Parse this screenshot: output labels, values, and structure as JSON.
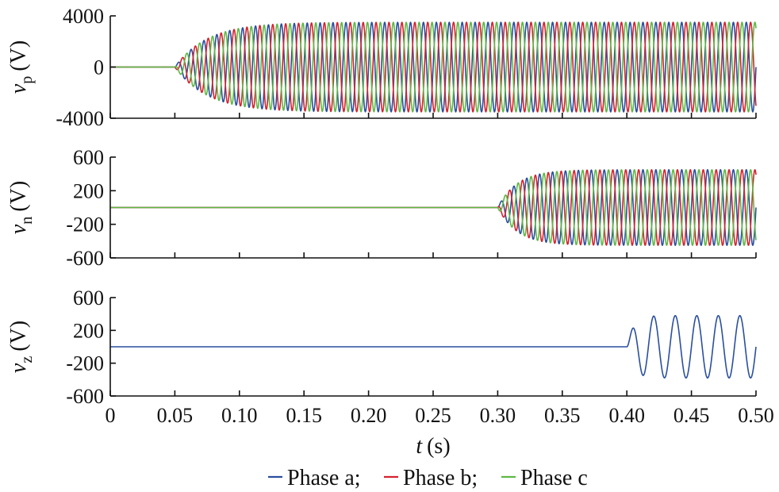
{
  "colors": {
    "phase_a": "#2b4f9e",
    "phase_b": "#d4232f",
    "phase_c": "#5fb844"
  },
  "chart_data": {
    "type": "line",
    "xlabel_var": "t",
    "xlabel_unit": "(s)",
    "x_range": [
      0,
      0.5
    ],
    "x_ticks": [
      0,
      0.05,
      0.1,
      0.15,
      0.2,
      0.25,
      0.3,
      0.35,
      0.4,
      0.45,
      0.5
    ],
    "x_tick_labels": [
      "0",
      "0.05",
      "0.10",
      "0.15",
      "0.20",
      "0.25",
      "0.30",
      "0.35",
      "0.40",
      "0.45",
      "0.50"
    ],
    "legend": {
      "placement": "bottom-center",
      "entries": [
        {
          "label": "Phase a;",
          "color": "#2b4f9e"
        },
        {
          "label": "Phase b;",
          "color": "#d4232f"
        },
        {
          "label": "Phase c",
          "color": "#5fb844"
        }
      ]
    },
    "panels": [
      {
        "id": "vp",
        "ylabel_var": "v",
        "ylabel_sub": "p",
        "ylabel_unit": "(V)",
        "ylim": [
          -4000,
          4000
        ],
        "yticks": [
          -4000,
          0,
          4000
        ],
        "ytick_labels": [
          "-4000",
          "0",
          "4000"
        ],
        "series": [
          {
            "name": "Phase a",
            "color": "#2b4f9e",
            "onset": 0.05,
            "amplitude": 3500,
            "tau": 0.025,
            "freq": 100,
            "phase_deg": 0,
            "visible": true
          },
          {
            "name": "Phase b",
            "color": "#d4232f",
            "onset": 0.05,
            "amplitude": 3500,
            "tau": 0.025,
            "freq": 100,
            "phase_deg": -120,
            "visible": true
          },
          {
            "name": "Phase c",
            "color": "#5fb844",
            "onset": 0.05,
            "amplitude": 3500,
            "tau": 0.025,
            "freq": 100,
            "phase_deg": 120,
            "visible": true
          }
        ]
      },
      {
        "id": "vn",
        "ylabel_var": "v",
        "ylabel_sub": "n",
        "ylabel_unit": "(V)",
        "ylim": [
          -600,
          600
        ],
        "yticks": [
          -600,
          -200,
          200,
          600
        ],
        "ytick_labels": [
          "-600",
          "-200",
          "200",
          "600"
        ],
        "series": [
          {
            "name": "Phase a",
            "color": "#2b4f9e",
            "onset": 0.3,
            "amplitude": 450,
            "tau": 0.015,
            "freq": 100,
            "phase_deg": 0,
            "visible": true
          },
          {
            "name": "Phase b",
            "color": "#d4232f",
            "onset": 0.3,
            "amplitude": 450,
            "tau": 0.015,
            "freq": 100,
            "phase_deg": 120,
            "visible": true
          },
          {
            "name": "Phase c",
            "color": "#5fb844",
            "onset": 0.3,
            "amplitude": 450,
            "tau": 0.015,
            "freq": 100,
            "phase_deg": -120,
            "visible": true
          }
        ]
      },
      {
        "id": "vz",
        "ylabel_var": "v",
        "ylabel_sub": "z",
        "ylabel_unit": "(V)",
        "ylim": [
          -600,
          600
        ],
        "yticks": [
          -600,
          -200,
          200,
          600
        ],
        "ytick_labels": [
          "-600",
          "-200",
          "200",
          "600"
        ],
        "series": [
          {
            "name": "Phase a",
            "color": "#2b4f9e",
            "onset": 0.4,
            "amplitude": 380,
            "tau": 0.005,
            "freq": 60,
            "phase_deg": 0,
            "visible": true
          },
          {
            "name": "Phase b",
            "color": "#d4232f",
            "onset": 0.4,
            "amplitude": 380,
            "tau": 0.005,
            "freq": 60,
            "phase_deg": 0,
            "visible": false
          },
          {
            "name": "Phase c",
            "color": "#5fb844",
            "onset": 0.4,
            "amplitude": 380,
            "tau": 0.005,
            "freq": 60,
            "phase_deg": 0,
            "visible": false
          }
        ]
      }
    ]
  }
}
